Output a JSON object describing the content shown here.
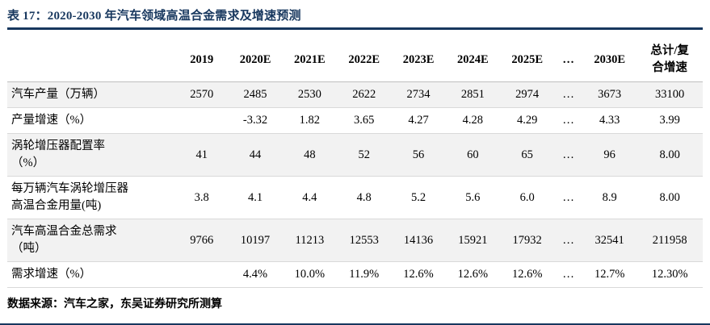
{
  "title": "表 17：2020-2030 年汽车领域高温合金需求及增速预测",
  "colors": {
    "accent_navy": "#17375E",
    "stripe_gray": "#F2F2F2"
  },
  "table": {
    "headers": [
      "",
      "2019",
      "2020E",
      "2021E",
      "2022E",
      "2023E",
      "2024E",
      "2025E",
      "…",
      "2030E",
      "总计/复\n合增速"
    ],
    "rows": [
      {
        "label": "汽车产量（万辆）",
        "values": [
          "2570",
          "2485",
          "2530",
          "2622",
          "2734",
          "2851",
          "2974",
          "…",
          "3673",
          "33100"
        ]
      },
      {
        "label": "产量增速（%）",
        "values": [
          "",
          "-3.32",
          "1.82",
          "3.65",
          "4.27",
          "4.28",
          "4.29",
          "…",
          "4.33",
          "3.99"
        ]
      },
      {
        "label": "涡轮增压器配置率\n（%）",
        "values": [
          "41",
          "44",
          "48",
          "52",
          "56",
          "60",
          "65",
          "…",
          "96",
          "8.00"
        ]
      },
      {
        "label": "每万辆汽车涡轮增压器\n高温合金用量(吨)",
        "values": [
          "3.8",
          "4.1",
          "4.4",
          "4.8",
          "5.2",
          "5.6",
          "6.0",
          "…",
          "8.9",
          "8.00"
        ]
      },
      {
        "label": "汽车高温合金总需求\n（吨）",
        "values": [
          "9766",
          "10197",
          "11213",
          "12553",
          "14136",
          "15921",
          "17932",
          "…",
          "32541",
          "211958"
        ]
      },
      {
        "label": "需求增速（%）",
        "values": [
          "",
          "4.4%",
          "10.0%",
          "11.9%",
          "12.6%",
          "12.6%",
          "12.6%",
          "…",
          "12.7%",
          "12.30%"
        ]
      }
    ]
  },
  "footer": {
    "source": "数据来源：汽车之家，东吴证券研究所测算"
  }
}
